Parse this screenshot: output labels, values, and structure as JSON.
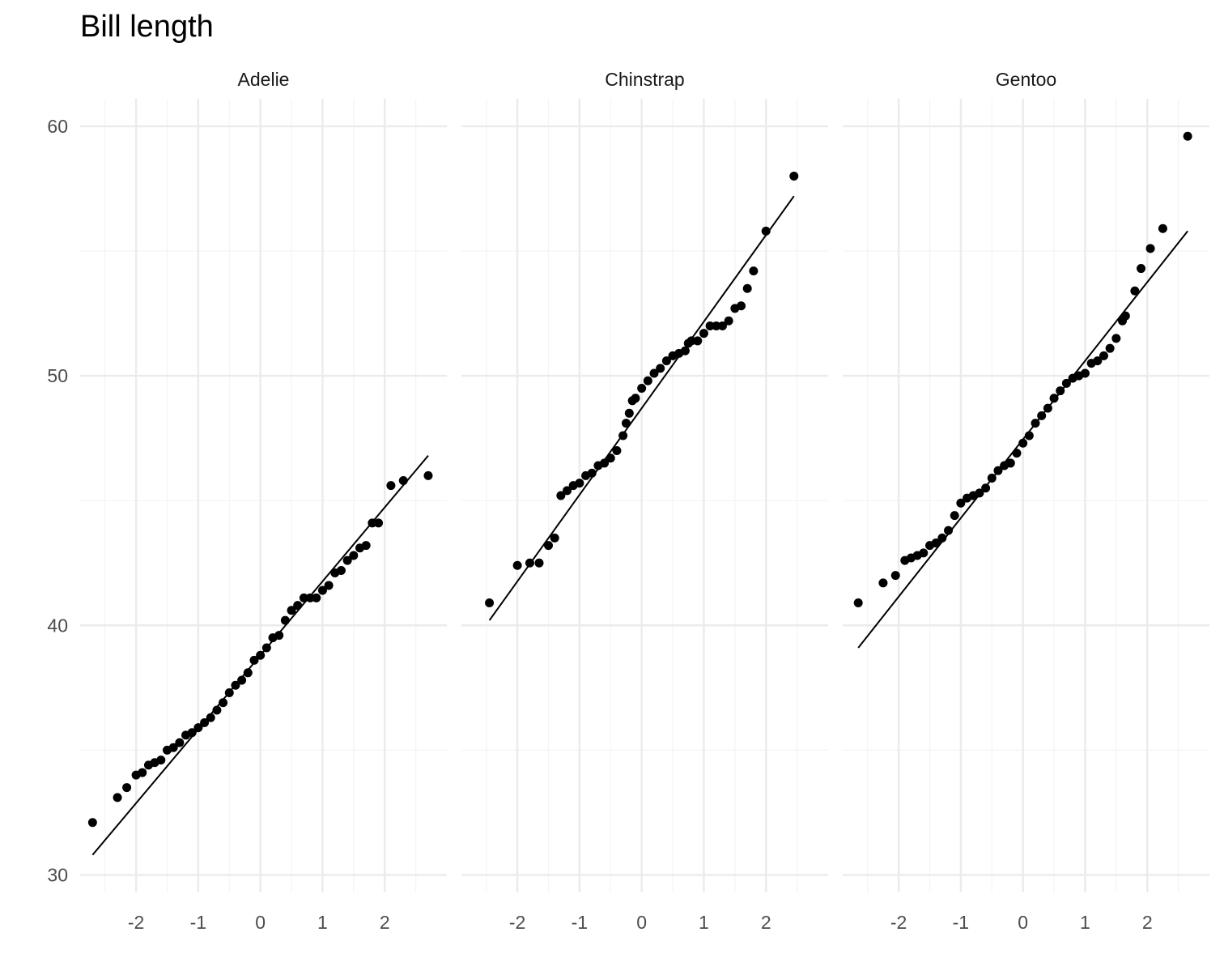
{
  "chart_data": {
    "type": "scatter",
    "title": "Bill length",
    "xlabel": "",
    "ylabel": "",
    "xlim": [
      -2.9,
      3.0
    ],
    "ylim": [
      29.3,
      61.1
    ],
    "x_ticks": [
      -2,
      -1,
      0,
      1,
      2
    ],
    "y_ticks": [
      30,
      40,
      50,
      60
    ],
    "grid": true,
    "colors": {
      "grid_major": "#ebebeb",
      "grid_minor": "#f4f4f4",
      "points": "#000000",
      "line": "#000000"
    },
    "facets": [
      {
        "name": "Adelie",
        "line": {
          "x": [
            -2.7,
            2.7
          ],
          "y": [
            30.8,
            46.8
          ]
        },
        "points": [
          [
            -2.7,
            32.1
          ],
          [
            -2.3,
            33.1
          ],
          [
            -2.15,
            33.5
          ],
          [
            -2.0,
            34.0
          ],
          [
            -1.9,
            34.1
          ],
          [
            -1.8,
            34.4
          ],
          [
            -1.7,
            34.5
          ],
          [
            -1.6,
            34.6
          ],
          [
            -1.5,
            35.0
          ],
          [
            -1.4,
            35.1
          ],
          [
            -1.3,
            35.3
          ],
          [
            -1.2,
            35.6
          ],
          [
            -1.1,
            35.7
          ],
          [
            -1.0,
            35.9
          ],
          [
            -0.9,
            36.1
          ],
          [
            -0.8,
            36.3
          ],
          [
            -0.7,
            36.6
          ],
          [
            -0.6,
            36.9
          ],
          [
            -0.5,
            37.3
          ],
          [
            -0.4,
            37.6
          ],
          [
            -0.3,
            37.8
          ],
          [
            -0.2,
            38.1
          ],
          [
            -0.1,
            38.6
          ],
          [
            0.0,
            38.8
          ],
          [
            0.1,
            39.1
          ],
          [
            0.2,
            39.5
          ],
          [
            0.3,
            39.6
          ],
          [
            0.4,
            40.2
          ],
          [
            0.5,
            40.6
          ],
          [
            0.6,
            40.8
          ],
          [
            0.7,
            41.1
          ],
          [
            0.8,
            41.1
          ],
          [
            0.9,
            41.1
          ],
          [
            1.0,
            41.4
          ],
          [
            1.1,
            41.6
          ],
          [
            1.2,
            42.1
          ],
          [
            1.3,
            42.2
          ],
          [
            1.4,
            42.6
          ],
          [
            1.5,
            42.8
          ],
          [
            1.6,
            43.1
          ],
          [
            1.7,
            43.2
          ],
          [
            1.8,
            44.1
          ],
          [
            1.9,
            44.1
          ],
          [
            2.1,
            45.6
          ],
          [
            2.3,
            45.8
          ],
          [
            2.7,
            46.0
          ]
        ]
      },
      {
        "name": "Chinstrap",
        "line": {
          "x": [
            -2.45,
            2.45
          ],
          "y": [
            40.2,
            57.2
          ]
        },
        "points": [
          [
            -2.45,
            40.9
          ],
          [
            -2.0,
            42.4
          ],
          [
            -1.8,
            42.5
          ],
          [
            -1.65,
            42.5
          ],
          [
            -1.5,
            43.2
          ],
          [
            -1.4,
            43.5
          ],
          [
            -1.3,
            45.2
          ],
          [
            -1.2,
            45.4
          ],
          [
            -1.1,
            45.6
          ],
          [
            -1.0,
            45.7
          ],
          [
            -0.9,
            46.0
          ],
          [
            -0.8,
            46.1
          ],
          [
            -0.7,
            46.4
          ],
          [
            -0.6,
            46.5
          ],
          [
            -0.5,
            46.7
          ],
          [
            -0.4,
            47.0
          ],
          [
            -0.3,
            47.6
          ],
          [
            -0.25,
            48.1
          ],
          [
            -0.2,
            48.5
          ],
          [
            -0.15,
            49.0
          ],
          [
            -0.1,
            49.1
          ],
          [
            0.0,
            49.5
          ],
          [
            0.1,
            49.8
          ],
          [
            0.2,
            50.1
          ],
          [
            0.3,
            50.3
          ],
          [
            0.4,
            50.6
          ],
          [
            0.5,
            50.8
          ],
          [
            0.6,
            50.9
          ],
          [
            0.7,
            51.0
          ],
          [
            0.75,
            51.3
          ],
          [
            0.8,
            51.4
          ],
          [
            0.9,
            51.4
          ],
          [
            1.0,
            51.7
          ],
          [
            1.1,
            52.0
          ],
          [
            1.2,
            52.0
          ],
          [
            1.3,
            52.0
          ],
          [
            1.4,
            52.2
          ],
          [
            1.5,
            52.7
          ],
          [
            1.6,
            52.8
          ],
          [
            1.7,
            53.5
          ],
          [
            1.8,
            54.2
          ],
          [
            2.0,
            55.8
          ],
          [
            2.45,
            58.0
          ]
        ]
      },
      {
        "name": "Gentoo",
        "line": {
          "x": [
            -2.65,
            2.65
          ],
          "y": [
            39.1,
            55.8
          ]
        },
        "points": [
          [
            -2.65,
            40.9
          ],
          [
            -2.25,
            41.7
          ],
          [
            -2.05,
            42.0
          ],
          [
            -1.9,
            42.6
          ],
          [
            -1.8,
            42.7
          ],
          [
            -1.7,
            42.8
          ],
          [
            -1.6,
            42.9
          ],
          [
            -1.5,
            43.2
          ],
          [
            -1.4,
            43.3
          ],
          [
            -1.3,
            43.5
          ],
          [
            -1.2,
            43.8
          ],
          [
            -1.1,
            44.4
          ],
          [
            -1.0,
            44.9
          ],
          [
            -0.9,
            45.1
          ],
          [
            -0.8,
            45.2
          ],
          [
            -0.7,
            45.3
          ],
          [
            -0.6,
            45.5
          ],
          [
            -0.5,
            45.9
          ],
          [
            -0.4,
            46.2
          ],
          [
            -0.3,
            46.4
          ],
          [
            -0.2,
            46.5
          ],
          [
            -0.1,
            46.9
          ],
          [
            0.0,
            47.3
          ],
          [
            0.1,
            47.6
          ],
          [
            0.2,
            48.1
          ],
          [
            0.3,
            48.4
          ],
          [
            0.4,
            48.7
          ],
          [
            0.5,
            49.1
          ],
          [
            0.6,
            49.4
          ],
          [
            0.7,
            49.7
          ],
          [
            0.8,
            49.9
          ],
          [
            0.9,
            50.0
          ],
          [
            1.0,
            50.1
          ],
          [
            1.1,
            50.5
          ],
          [
            1.2,
            50.6
          ],
          [
            1.3,
            50.8
          ],
          [
            1.4,
            51.1
          ],
          [
            1.5,
            51.5
          ],
          [
            1.6,
            52.2
          ],
          [
            1.65,
            52.4
          ],
          [
            1.8,
            53.4
          ],
          [
            1.9,
            54.3
          ],
          [
            2.05,
            55.1
          ],
          [
            2.25,
            55.9
          ],
          [
            2.65,
            59.6
          ]
        ]
      }
    ]
  }
}
